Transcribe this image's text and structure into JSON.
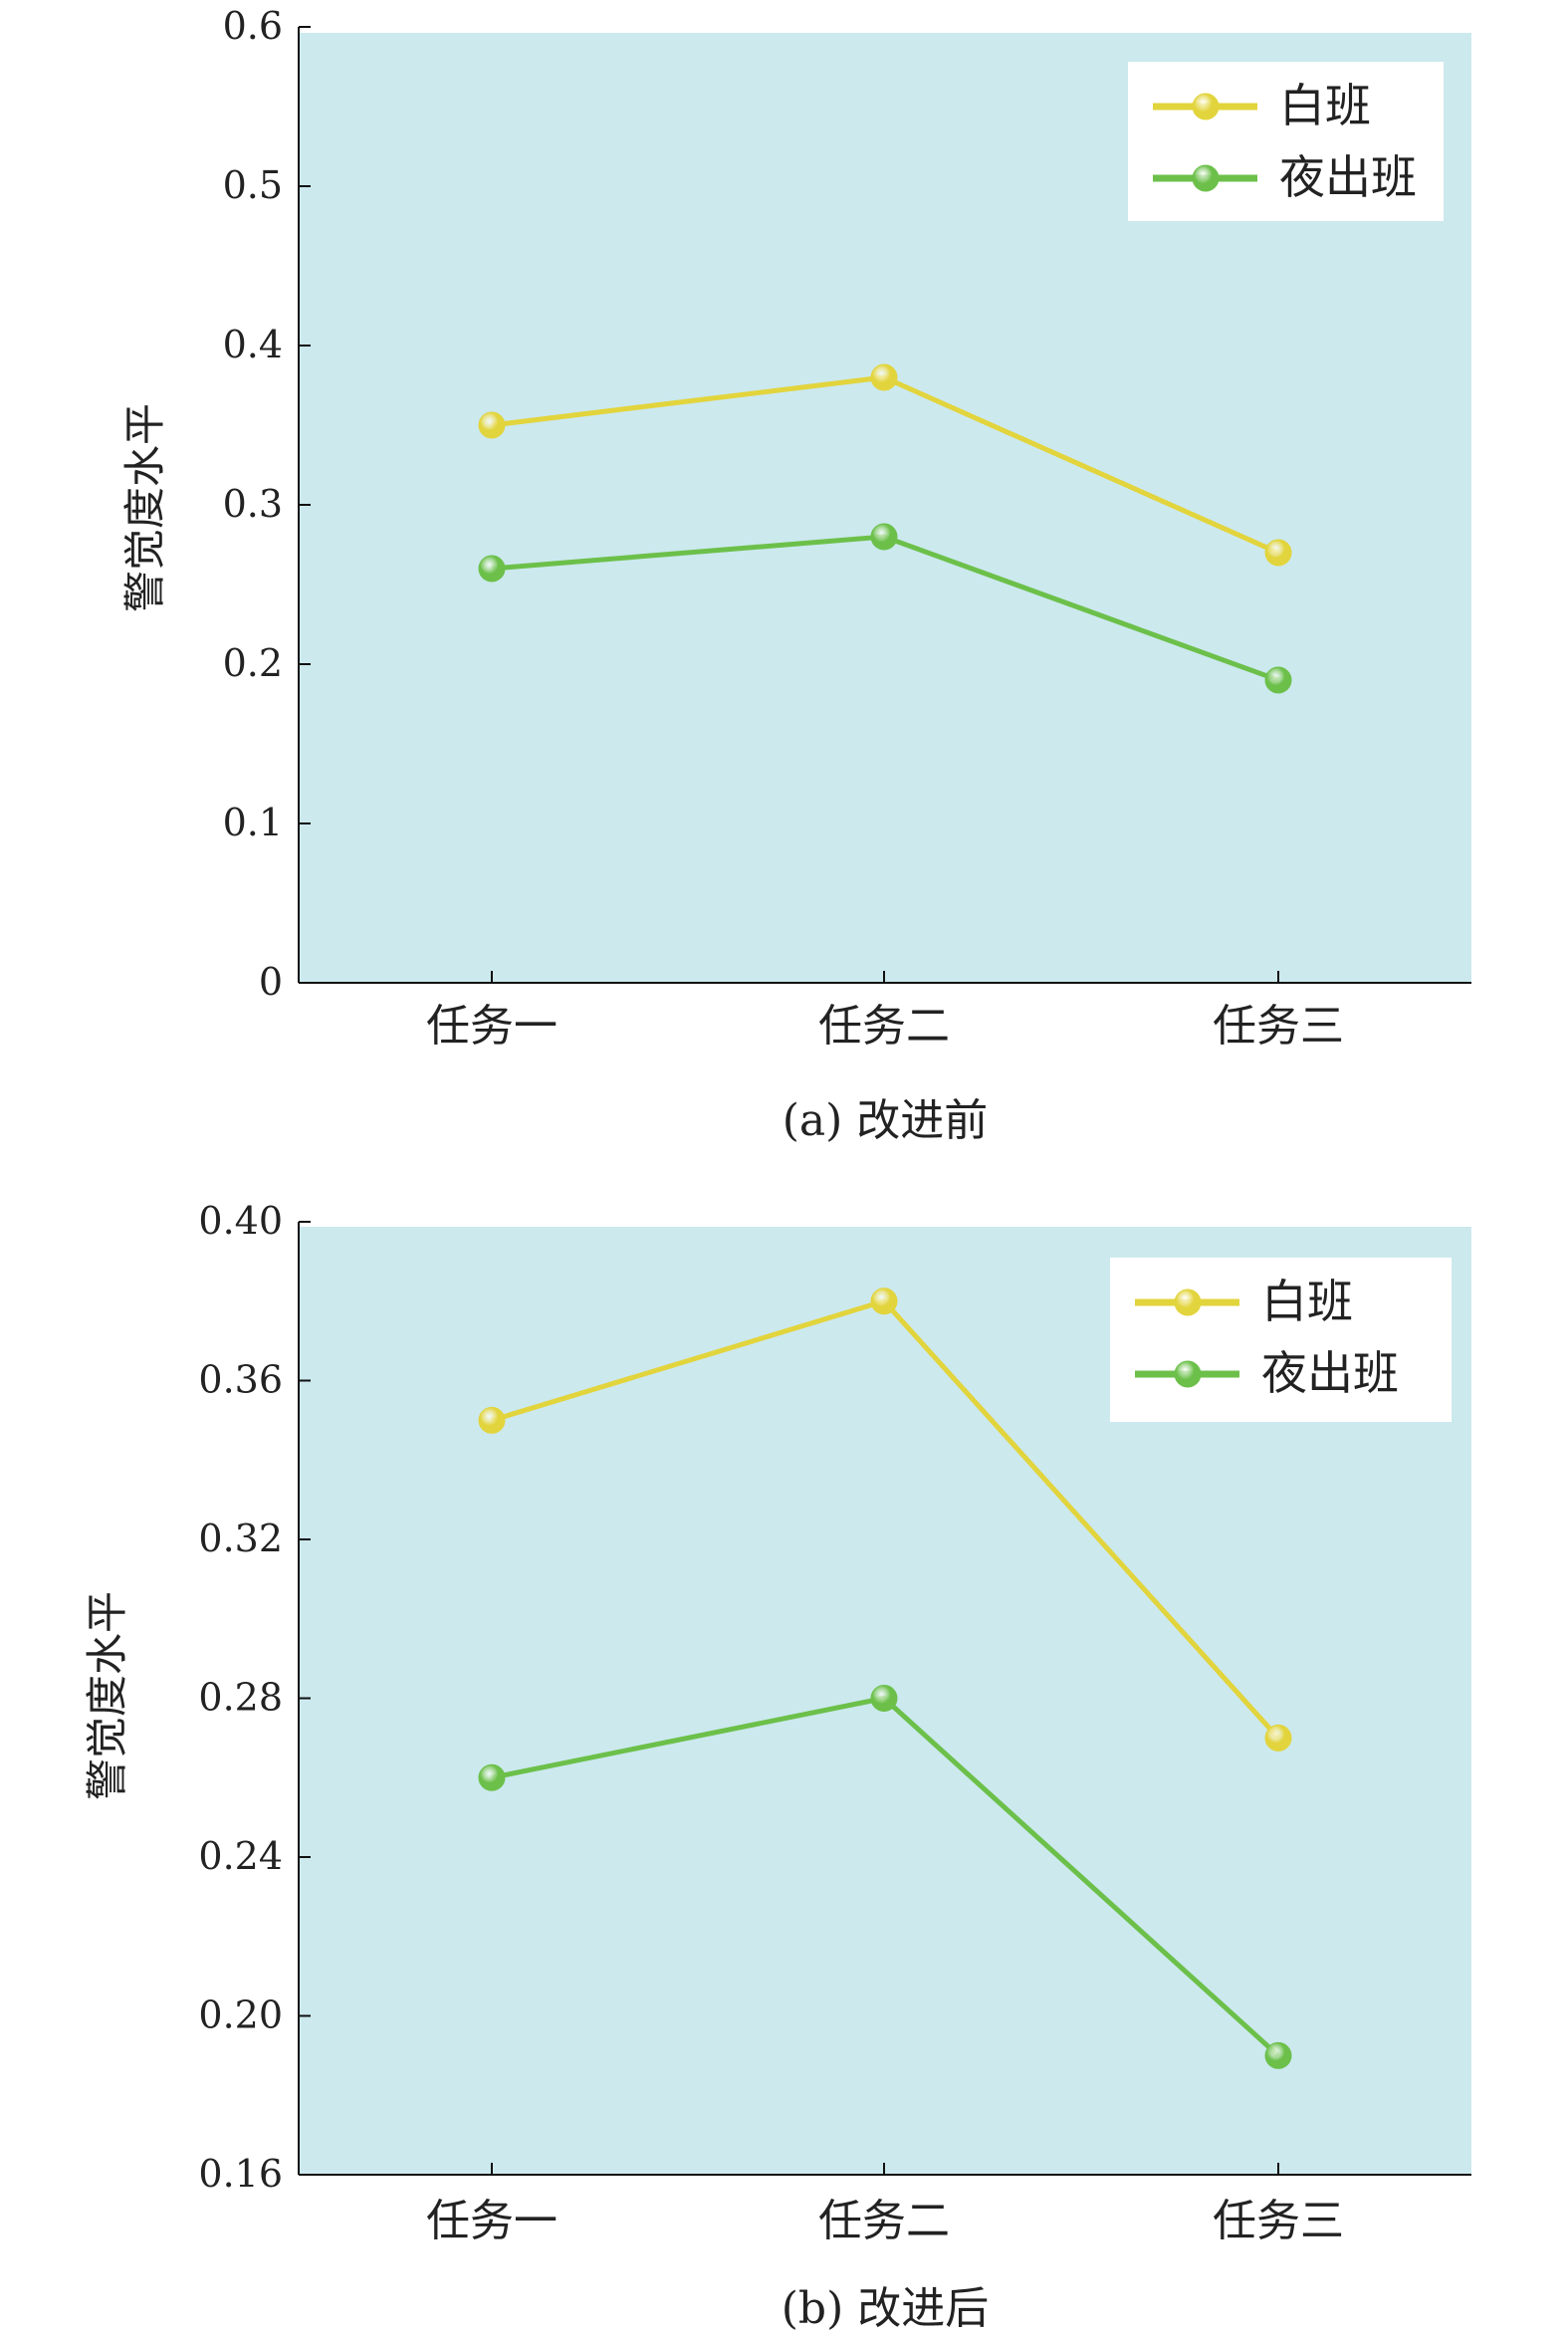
{
  "colors": {
    "plot_bg": "#cce9ee",
    "day": "#e2d43c",
    "night": "#6cc04a"
  },
  "chart_data": [
    {
      "type": "line",
      "caption": "(a) 改进前",
      "ylabel": "警觉度水平",
      "categories": [
        "任务一",
        "任务二",
        "任务三"
      ],
      "ylim": [
        0,
        0.6
      ],
      "yticks": [
        "0",
        "0.1",
        "0.2",
        "0.3",
        "0.4",
        "0.5",
        "0.6"
      ],
      "ytick_values": [
        0,
        0.1,
        0.2,
        0.3,
        0.4,
        0.5,
        0.6
      ],
      "legend_position": "top-right",
      "series": [
        {
          "name": "白班",
          "values": [
            0.35,
            0.38,
            0.27
          ]
        },
        {
          "name": "夜出班",
          "values": [
            0.26,
            0.28,
            0.19
          ]
        }
      ]
    },
    {
      "type": "line",
      "caption": "(b) 改进后",
      "ylabel": "警觉度水平",
      "categories": [
        "任务一",
        "任务二",
        "任务三"
      ],
      "ylim": [
        0.16,
        0.4
      ],
      "yticks": [
        "0.16",
        "0.20",
        "0.24",
        "0.28",
        "0.32",
        "0.36",
        "0.40"
      ],
      "ytick_values": [
        0.16,
        0.2,
        0.24,
        0.28,
        0.32,
        0.36,
        0.4
      ],
      "legend_position": "top-right",
      "series": [
        {
          "name": "白班",
          "values": [
            0.35,
            0.38,
            0.27
          ]
        },
        {
          "name": "夜出班",
          "values": [
            0.26,
            0.28,
            0.19
          ]
        }
      ]
    }
  ]
}
